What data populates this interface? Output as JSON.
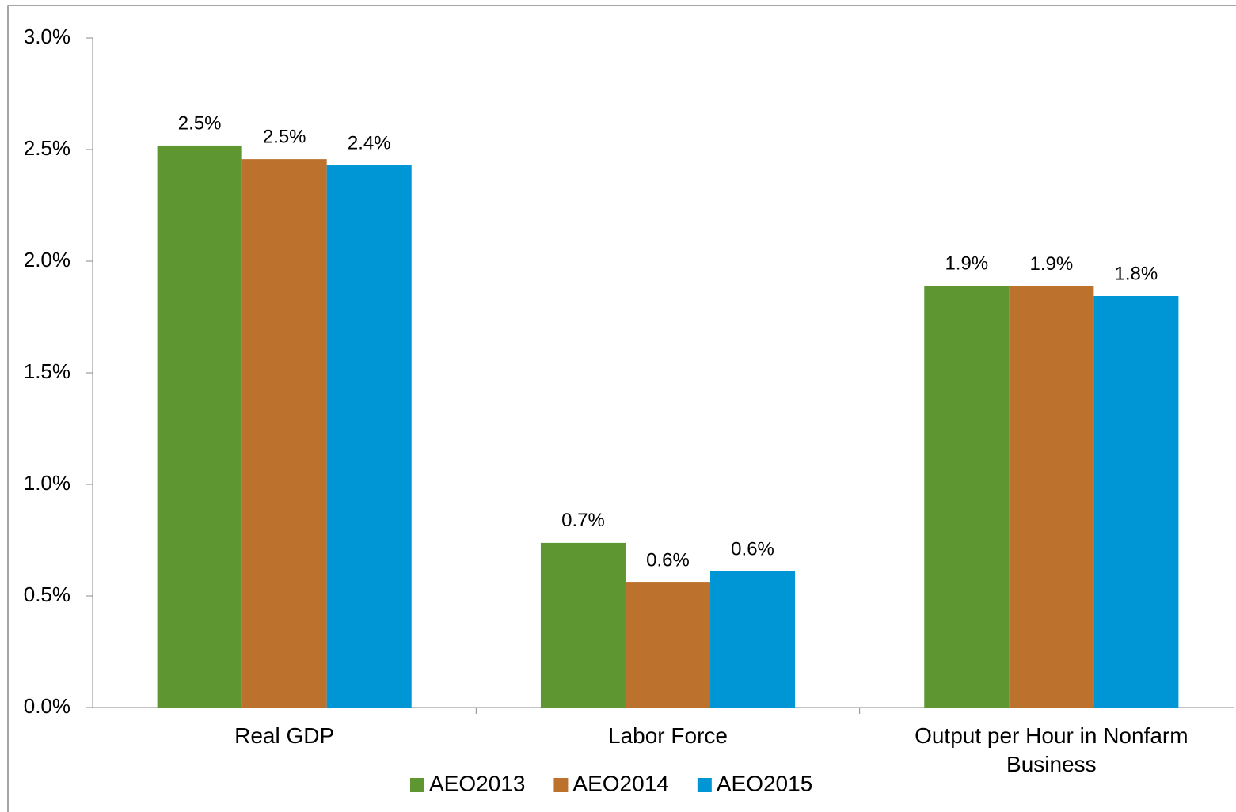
{
  "chart_data": {
    "type": "bar",
    "categories": [
      "Real GDP",
      "Labor Force",
      "Output per Hour in Nonfarm Business"
    ],
    "series": [
      {
        "name": "AEO2013",
        "color": "#5e9732",
        "values": [
          2.518,
          0.738,
          1.89
        ],
        "value_labels": [
          "2.5%",
          "0.7%",
          "1.9%"
        ]
      },
      {
        "name": "AEO2014",
        "color": "#bc722c",
        "values": [
          2.457,
          0.56,
          1.887
        ],
        "value_labels": [
          "2.5%",
          "0.6%",
          "1.9%"
        ]
      },
      {
        "name": "AEO2015",
        "color": "#0096d6",
        "values": [
          2.429,
          0.61,
          1.844
        ],
        "value_labels": [
          "2.4%",
          "0.6%",
          "1.8%"
        ]
      }
    ],
    "ylim": [
      0,
      3
    ],
    "yticks": [
      {
        "value": 0,
        "label": "0.0%"
      },
      {
        "value": 0.5,
        "label": "0.5%"
      },
      {
        "value": 1,
        "label": "1.0%"
      },
      {
        "value": 1.5,
        "label": "1.5%"
      },
      {
        "value": 2,
        "label": "2.0%"
      },
      {
        "value": 2.5,
        "label": "2.5%"
      },
      {
        "value": 3,
        "label": "3.0%"
      }
    ],
    "grid": false,
    "legend": "bottom"
  }
}
